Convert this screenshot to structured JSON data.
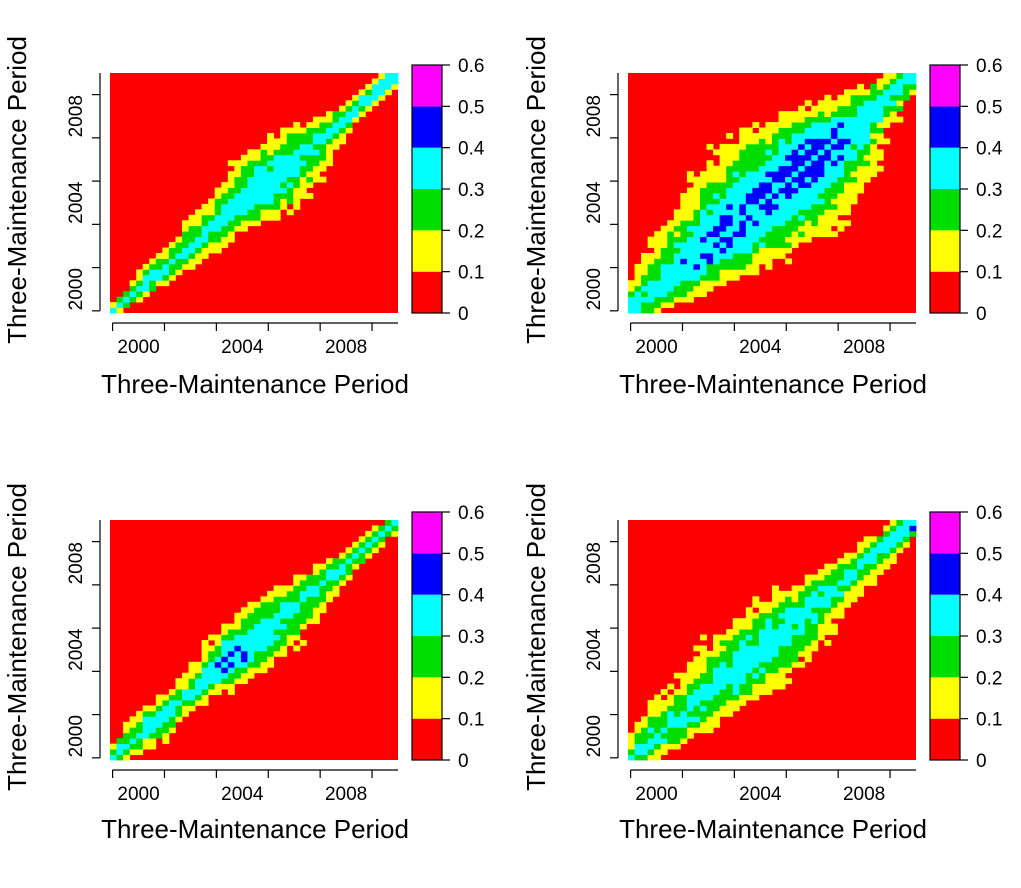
{
  "chart_data": [
    {
      "type": "heatmap",
      "xlabel": "Three-Maintenance Period",
      "ylabel": "Three-Maintenance Period",
      "x_ticks": [
        "2000",
        "2004",
        "2008"
      ],
      "y_ticks": [
        "2000",
        "2004",
        "2008"
      ],
      "x_range": [
        1998.9,
        2010.0
      ],
      "y_range": [
        1998.9,
        2010.0
      ],
      "colorbar": {
        "levels": [
          0,
          0.1,
          0.2,
          0.3,
          0.4,
          0.5,
          0.6
        ],
        "labels": [
          "0",
          "0.1",
          "0.2",
          "0.3",
          "0.4",
          "0.5",
          "0.6"
        ]
      },
      "grid": false,
      "band_profile": [
        {
          "year": 1999.0,
          "halfwidth": 0.18,
          "peak": 0.32
        },
        {
          "year": 2000.5,
          "halfwidth": 0.55,
          "peak": 0.34
        },
        {
          "year": 2002.0,
          "halfwidth": 0.7,
          "peak": 0.33
        },
        {
          "year": 2003.5,
          "halfwidth": 0.9,
          "peak": 0.35
        },
        {
          "year": 2005.0,
          "halfwidth": 1.6,
          "peak": 0.36
        },
        {
          "year": 2006.5,
          "halfwidth": 1.1,
          "peak": 0.33
        },
        {
          "year": 2008.0,
          "halfwidth": 0.45,
          "peak": 0.32
        },
        {
          "year": 2009.5,
          "halfwidth": 0.35,
          "peak": 0.45
        }
      ]
    },
    {
      "type": "heatmap",
      "xlabel": "Three-Maintenance Period",
      "ylabel": "Three-Maintenance Period",
      "x_ticks": [
        "2000",
        "2004",
        "2008"
      ],
      "y_ticks": [
        "2000",
        "2004",
        "2008"
      ],
      "x_range": [
        1998.9,
        2010.0
      ],
      "y_range": [
        1998.9,
        2010.0
      ],
      "colorbar": {
        "levels": [
          0,
          0.1,
          0.2,
          0.3,
          0.4,
          0.5,
          0.6
        ],
        "labels": [
          "0",
          "0.1",
          "0.2",
          "0.3",
          "0.4",
          "0.5",
          "0.6"
        ]
      },
      "grid": false,
      "band_profile": [
        {
          "year": 1999.0,
          "halfwidth": 0.7,
          "peak": 0.34
        },
        {
          "year": 2000.5,
          "halfwidth": 1.2,
          "peak": 0.36
        },
        {
          "year": 2002.0,
          "halfwidth": 1.8,
          "peak": 0.42
        },
        {
          "year": 2003.5,
          "halfwidth": 2.3,
          "peak": 0.43
        },
        {
          "year": 2005.0,
          "halfwidth": 2.5,
          "peak": 0.44
        },
        {
          "year": 2006.5,
          "halfwidth": 2.0,
          "peak": 0.45
        },
        {
          "year": 2008.0,
          "halfwidth": 1.2,
          "peak": 0.36
        },
        {
          "year": 2009.5,
          "halfwidth": 0.6,
          "peak": 0.34
        }
      ]
    },
    {
      "type": "heatmap",
      "xlabel": "Three-Maintenance Period",
      "ylabel": "Three-Maintenance Period",
      "x_ticks": [
        "2000",
        "2004",
        "2008"
      ],
      "y_ticks": [
        "2000",
        "2004",
        "2008"
      ],
      "x_range": [
        1998.9,
        2010.0
      ],
      "y_range": [
        1998.9,
        2010.0
      ],
      "colorbar": {
        "levels": [
          0,
          0.1,
          0.2,
          0.3,
          0.4,
          0.5,
          0.6
        ],
        "labels": [
          "0",
          "0.1",
          "0.2",
          "0.3",
          "0.4",
          "0.5",
          "0.6"
        ]
      },
      "grid": false,
      "band_profile": [
        {
          "year": 1999.0,
          "halfwidth": 0.4,
          "peak": 0.32
        },
        {
          "year": 2000.5,
          "halfwidth": 0.8,
          "peak": 0.33
        },
        {
          "year": 2002.0,
          "halfwidth": 0.6,
          "peak": 0.32
        },
        {
          "year": 2003.5,
          "halfwidth": 1.0,
          "peak": 0.45
        },
        {
          "year": 2005.0,
          "halfwidth": 1.3,
          "peak": 0.34
        },
        {
          "year": 2006.5,
          "halfwidth": 0.9,
          "peak": 0.32
        },
        {
          "year": 2008.0,
          "halfwidth": 0.5,
          "peak": 0.31
        },
        {
          "year": 2009.5,
          "halfwidth": 0.35,
          "peak": 0.33
        }
      ]
    },
    {
      "type": "heatmap",
      "xlabel": "Three-Maintenance Period",
      "ylabel": "Three-Maintenance Period",
      "x_ticks": [
        "2000",
        "2004",
        "2008"
      ],
      "y_ticks": [
        "2000",
        "2004",
        "2008"
      ],
      "x_range": [
        1998.9,
        2010.0
      ],
      "y_range": [
        1998.9,
        2010.0
      ],
      "colorbar": {
        "levels": [
          0,
          0.1,
          0.2,
          0.3,
          0.4,
          0.5,
          0.6
        ],
        "labels": [
          "0",
          "0.1",
          "0.2",
          "0.3",
          "0.4",
          "0.5",
          "0.6"
        ]
      },
      "grid": false,
      "band_profile": [
        {
          "year": 1999.0,
          "halfwidth": 0.5,
          "peak": 0.32
        },
        {
          "year": 2000.5,
          "halfwidth": 1.0,
          "peak": 0.33
        },
        {
          "year": 2002.0,
          "halfwidth": 1.3,
          "peak": 0.34
        },
        {
          "year": 2003.5,
          "halfwidth": 1.6,
          "peak": 0.36
        },
        {
          "year": 2005.0,
          "halfwidth": 1.5,
          "peak": 0.35
        },
        {
          "year": 2006.5,
          "halfwidth": 1.0,
          "peak": 0.33
        },
        {
          "year": 2008.0,
          "halfwidth": 0.7,
          "peak": 0.32
        },
        {
          "year": 2009.5,
          "halfwidth": 0.45,
          "peak": 0.45
        }
      ]
    }
  ],
  "colors": {
    "bins": [
      "#ff0000",
      "#ffff00",
      "#00dd00",
      "#00ffff",
      "#0000ff",
      "#ff00ff"
    ],
    "axis": "#000000",
    "background": "#ffffff"
  }
}
